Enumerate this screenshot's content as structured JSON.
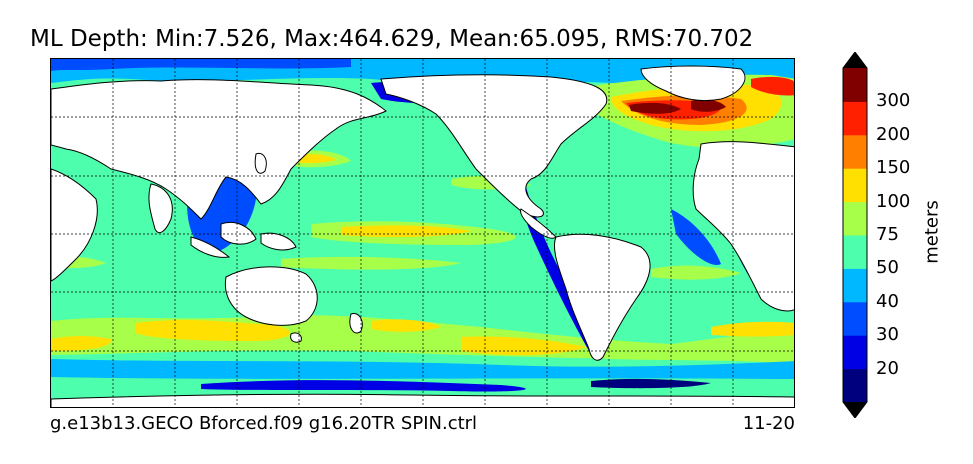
{
  "chart_data": {
    "type": "heatmap",
    "title": "ML Depth: Min:7.526, Max:464.629, Mean:65.095, RMS:70.702",
    "subtitle_left": "g.e13b13.GECO Bforced.f09 g16.20TR SPIN.ctrl",
    "subtitle_right": "11-20",
    "colorbar": {
      "label": "meters",
      "extend": "both",
      "levels": [
        10,
        20,
        30,
        40,
        50,
        75,
        100,
        150,
        200,
        300,
        400
      ],
      "tick_labels": [
        "20",
        "30",
        "40",
        "50",
        "75",
        "100",
        "150",
        "200",
        "300"
      ],
      "colors": [
        "#00007f",
        "#0000e5",
        "#004cff",
        "#00b8ff",
        "#4dffad",
        "#a8ff4a",
        "#ffe000",
        "#ff8000",
        "#ff2000",
        "#800000"
      ],
      "under_color": "#000000",
      "over_color": "#000000"
    },
    "grid": true,
    "land_color": "#ffffff",
    "coastline_color": "#000000"
  }
}
